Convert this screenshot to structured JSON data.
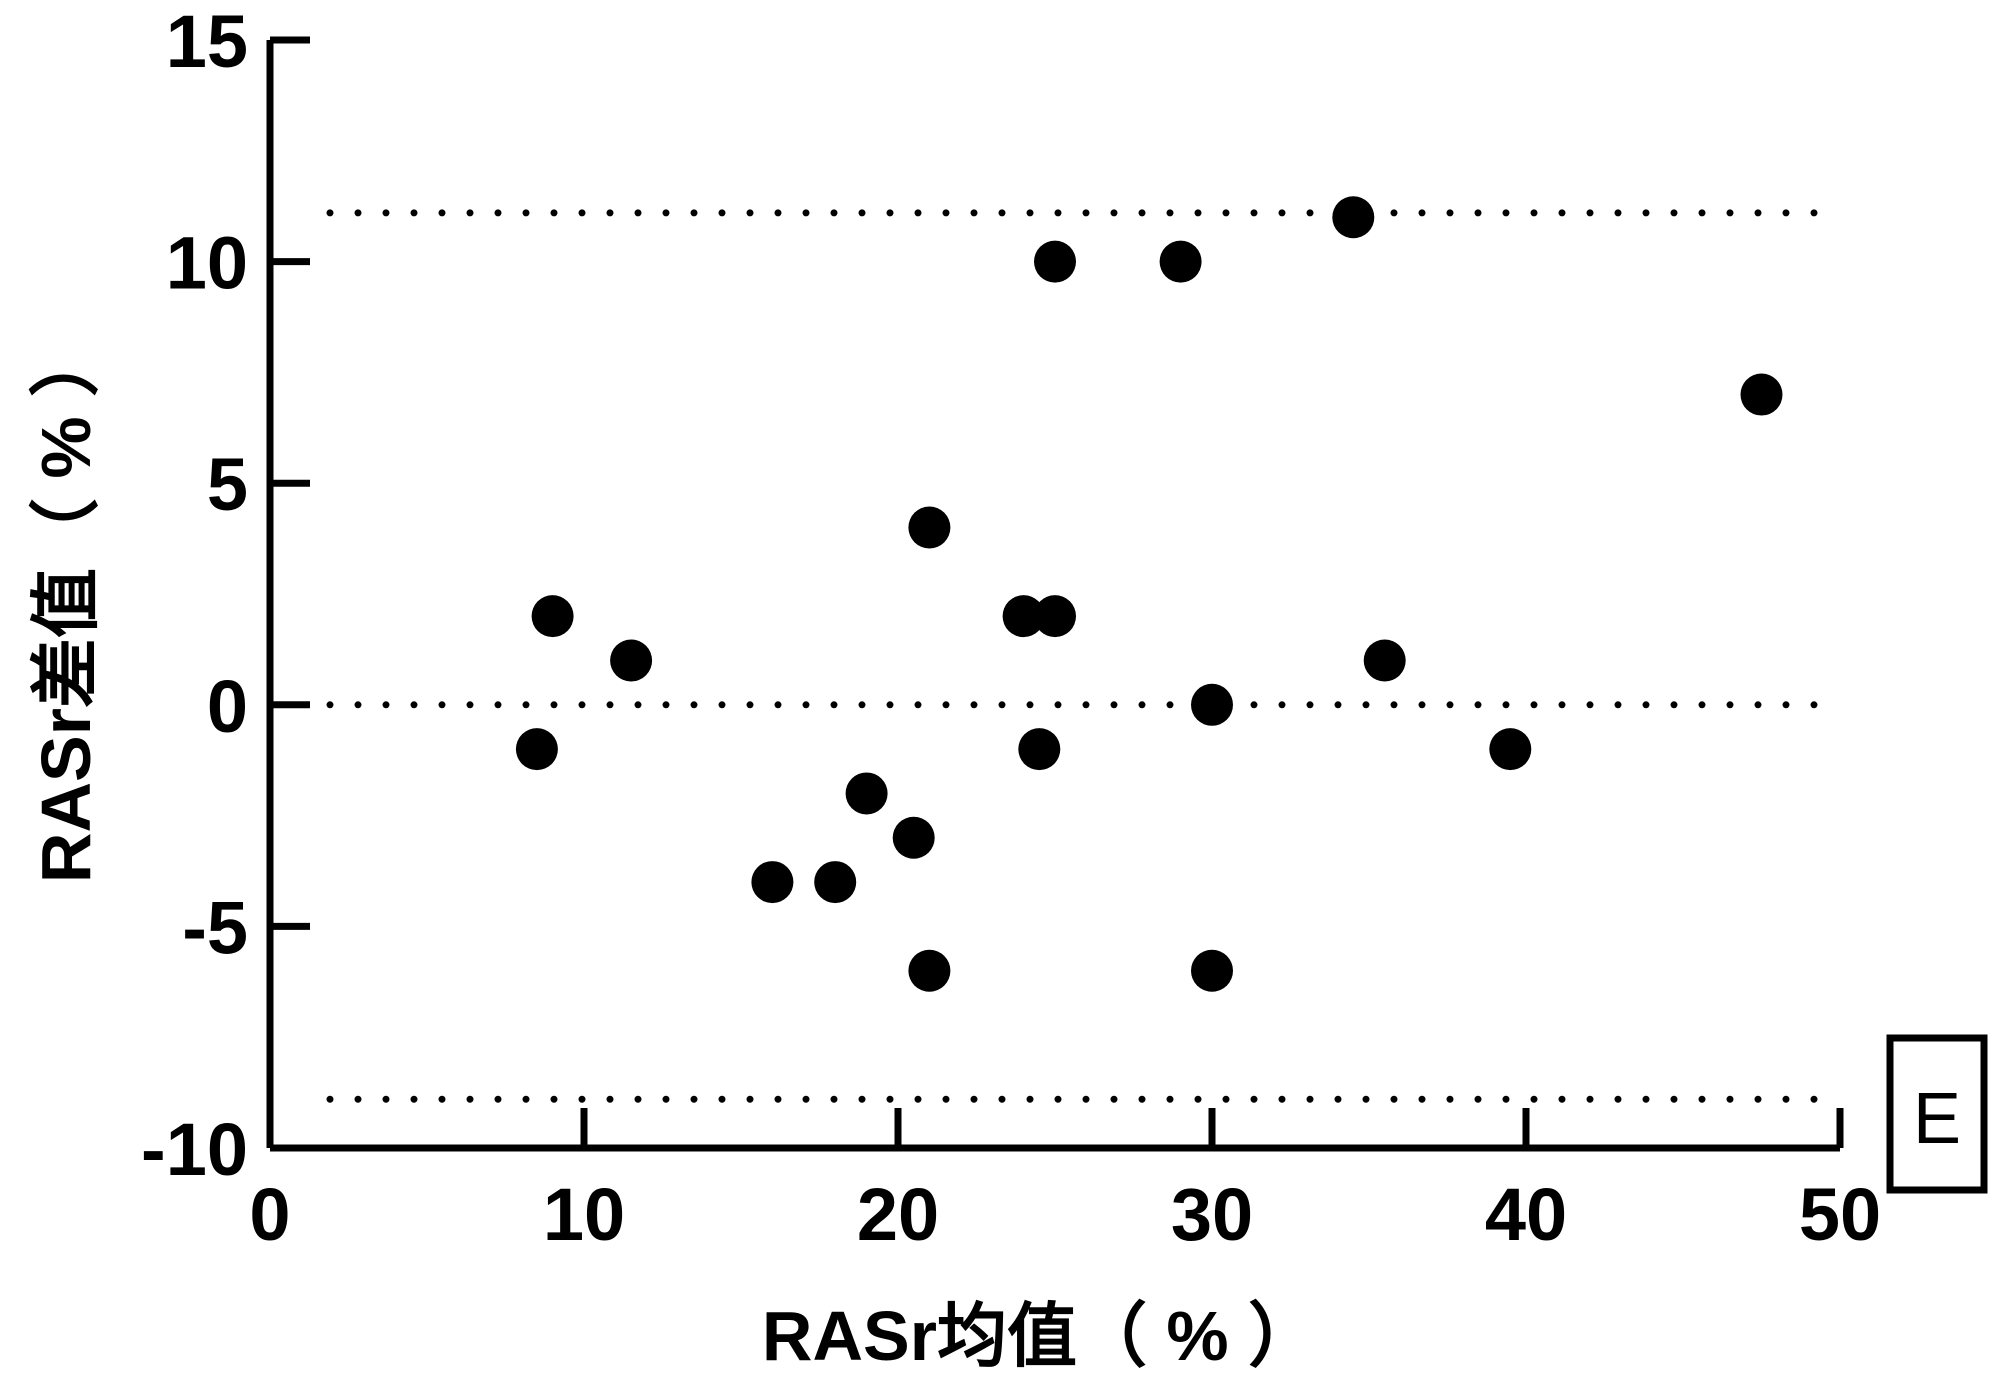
{
  "chart_data": {
    "type": "scatter",
    "title": "",
    "xlabel": "RASr均值（ %  ）",
    "ylabel": "RASr差值（ %  ）",
    "xlim": [
      0,
      50
    ],
    "ylim": [
      -10,
      15
    ],
    "xticks": [
      0,
      10,
      20,
      30,
      40,
      50
    ],
    "xtick_labels": [
      "0",
      "10",
      "20",
      "30",
      "40",
      "50"
    ],
    "yticks": [
      -10,
      -5,
      0,
      5,
      10,
      15
    ],
    "ytick_labels": [
      "-10",
      "-5",
      "0",
      "5",
      "10",
      "15"
    ],
    "grid": false,
    "reference_lines": [
      {
        "y": 11.1,
        "style": "dotted"
      },
      {
        "y": 0,
        "style": "dotted"
      },
      {
        "y": -8.9,
        "style": "dotted"
      }
    ],
    "points": [
      {
        "x": 8.5,
        "y": -1
      },
      {
        "x": 9,
        "y": 2
      },
      {
        "x": 11.5,
        "y": 1
      },
      {
        "x": 16,
        "y": -4
      },
      {
        "x": 18,
        "y": -4
      },
      {
        "x": 19,
        "y": -2
      },
      {
        "x": 20.5,
        "y": -3
      },
      {
        "x": 21,
        "y": 4
      },
      {
        "x": 21,
        "y": -6
      },
      {
        "x": 24,
        "y": 2
      },
      {
        "x": 24.5,
        "y": -1
      },
      {
        "x": 25,
        "y": 10
      },
      {
        "x": 25,
        "y": 2
      },
      {
        "x": 29,
        "y": 10
      },
      {
        "x": 30,
        "y": 0
      },
      {
        "x": 30,
        "y": -6
      },
      {
        "x": 34.5,
        "y": 11
      },
      {
        "x": 35.5,
        "y": 1
      },
      {
        "x": 39.5,
        "y": -1
      },
      {
        "x": 47.5,
        "y": 7
      }
    ],
    "panel_label": "E",
    "colors": {
      "marker": "#000000",
      "axis": "#000000"
    }
  }
}
